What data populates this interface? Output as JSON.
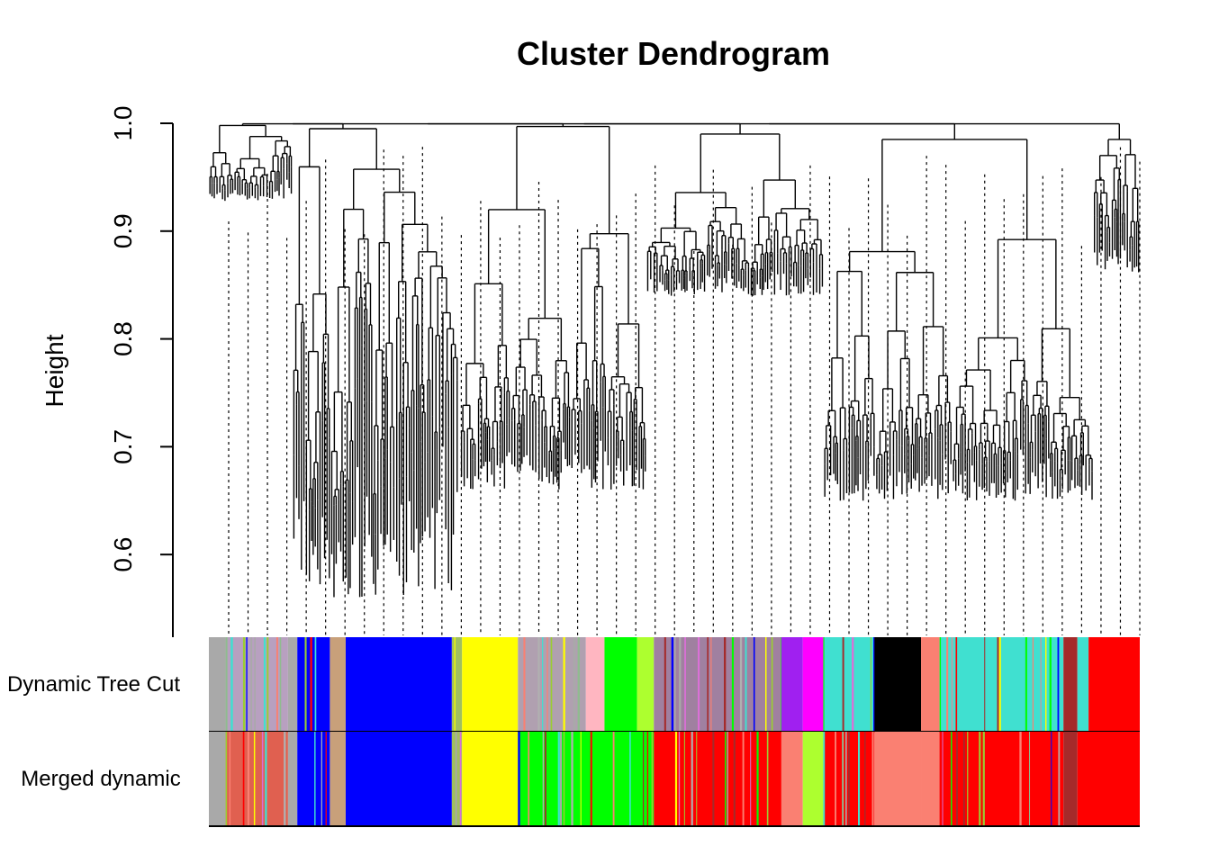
{
  "chart_data": {
    "type": "dendrogram",
    "title": "Cluster Dendrogram",
    "ylabel": "Height",
    "ylim": [
      0.525,
      1.0
    ],
    "yticks": [
      {
        "value": 0.6,
        "label": "0.6"
      },
      {
        "value": 0.7,
        "label": "0.7"
      },
      {
        "value": 0.8,
        "label": "0.8"
      },
      {
        "value": 0.9,
        "label": "0.9"
      },
      {
        "value": 1.0,
        "label": "1.0"
      }
    ],
    "color_bands": [
      {
        "label": "Dynamic Tree Cut",
        "segments": [
          {
            "from": 0.0,
            "to": 0.018,
            "color": "#A9A9A9"
          },
          {
            "from": 0.018,
            "to": 0.085,
            "color": "#B8A0C0",
            "striped": true
          },
          {
            "from": 0.085,
            "to": 0.095,
            "color": "#A9A9A9"
          },
          {
            "from": 0.095,
            "to": 0.13,
            "color": "#0000FF",
            "striped": true
          },
          {
            "from": 0.13,
            "to": 0.147,
            "color": "#C8A07A"
          },
          {
            "from": 0.147,
            "to": 0.261,
            "color": "#0000FF"
          },
          {
            "from": 0.261,
            "to": 0.272,
            "color": "#A0C060",
            "striped": true
          },
          {
            "from": 0.272,
            "to": 0.332,
            "color": "#FFFF00"
          },
          {
            "from": 0.332,
            "to": 0.405,
            "color": "#B0A0B0",
            "striped": true
          },
          {
            "from": 0.405,
            "to": 0.425,
            "color": "#FFB6C1"
          },
          {
            "from": 0.425,
            "to": 0.46,
            "color": "#00FF00"
          },
          {
            "from": 0.46,
            "to": 0.478,
            "color": "#ADFF2F"
          },
          {
            "from": 0.478,
            "to": 0.615,
            "color": "#A080A0",
            "striped": true
          },
          {
            "from": 0.615,
            "to": 0.638,
            "color": "#A020F0"
          },
          {
            "from": 0.638,
            "to": 0.66,
            "color": "#FF00FF"
          },
          {
            "from": 0.66,
            "to": 0.715,
            "color": "#40E0D0",
            "striped": true
          },
          {
            "from": 0.715,
            "to": 0.765,
            "color": "#000000"
          },
          {
            "from": 0.765,
            "to": 0.785,
            "color": "#FA8072"
          },
          {
            "from": 0.785,
            "to": 0.918,
            "color": "#40E0D0",
            "striped": true
          },
          {
            "from": 0.918,
            "to": 0.933,
            "color": "#A52A2A"
          },
          {
            "from": 0.933,
            "to": 0.945,
            "color": "#40E0D0"
          },
          {
            "from": 0.945,
            "to": 1.0,
            "color": "#FF0000"
          }
        ]
      },
      {
        "label": "Merged dynamic",
        "segments": [
          {
            "from": 0.0,
            "to": 0.018,
            "color": "#A9A9A9"
          },
          {
            "from": 0.018,
            "to": 0.085,
            "color": "#E06050",
            "striped": true
          },
          {
            "from": 0.085,
            "to": 0.095,
            "color": "#A9A9A9"
          },
          {
            "from": 0.095,
            "to": 0.13,
            "color": "#0000FF",
            "striped": true
          },
          {
            "from": 0.13,
            "to": 0.147,
            "color": "#C8A07A"
          },
          {
            "from": 0.147,
            "to": 0.261,
            "color": "#0000FF"
          },
          {
            "from": 0.261,
            "to": 0.272,
            "color": "#A0C060",
            "striped": true
          },
          {
            "from": 0.272,
            "to": 0.332,
            "color": "#FFFF00"
          },
          {
            "from": 0.332,
            "to": 0.478,
            "color": "#00FF00",
            "striped": true
          },
          {
            "from": 0.478,
            "to": 0.615,
            "color": "#FF0000",
            "striped": true
          },
          {
            "from": 0.615,
            "to": 0.638,
            "color": "#FA8072"
          },
          {
            "from": 0.638,
            "to": 0.66,
            "color": "#ADFF2F"
          },
          {
            "from": 0.66,
            "to": 0.715,
            "color": "#FF0000",
            "striped": true
          },
          {
            "from": 0.715,
            "to": 0.765,
            "color": "#FA8072"
          },
          {
            "from": 0.765,
            "to": 0.785,
            "color": "#FA8072"
          },
          {
            "from": 0.785,
            "to": 0.918,
            "color": "#FF0000",
            "striped": true
          },
          {
            "from": 0.918,
            "to": 0.933,
            "color": "#A52A2A"
          },
          {
            "from": 0.933,
            "to": 1.0,
            "color": "#FF0000"
          }
        ]
      }
    ],
    "branches": [
      {
        "from": 0.0,
        "to": 0.09,
        "height": 0.998,
        "min_leaf": 0.93
      },
      {
        "from": 0.09,
        "to": 0.27,
        "height": 0.995,
        "min_leaf": 0.56,
        "deep": true
      },
      {
        "from": 0.27,
        "to": 0.47,
        "height": 0.997,
        "min_leaf": 0.66
      },
      {
        "from": 0.47,
        "to": 0.66,
        "height": 0.99,
        "min_leaf": 0.84
      },
      {
        "from": 0.66,
        "to": 0.95,
        "height": 0.985,
        "min_leaf": 0.65
      },
      {
        "from": 0.95,
        "to": 1.0,
        "height": 0.985,
        "min_leaf": 0.86
      }
    ]
  }
}
